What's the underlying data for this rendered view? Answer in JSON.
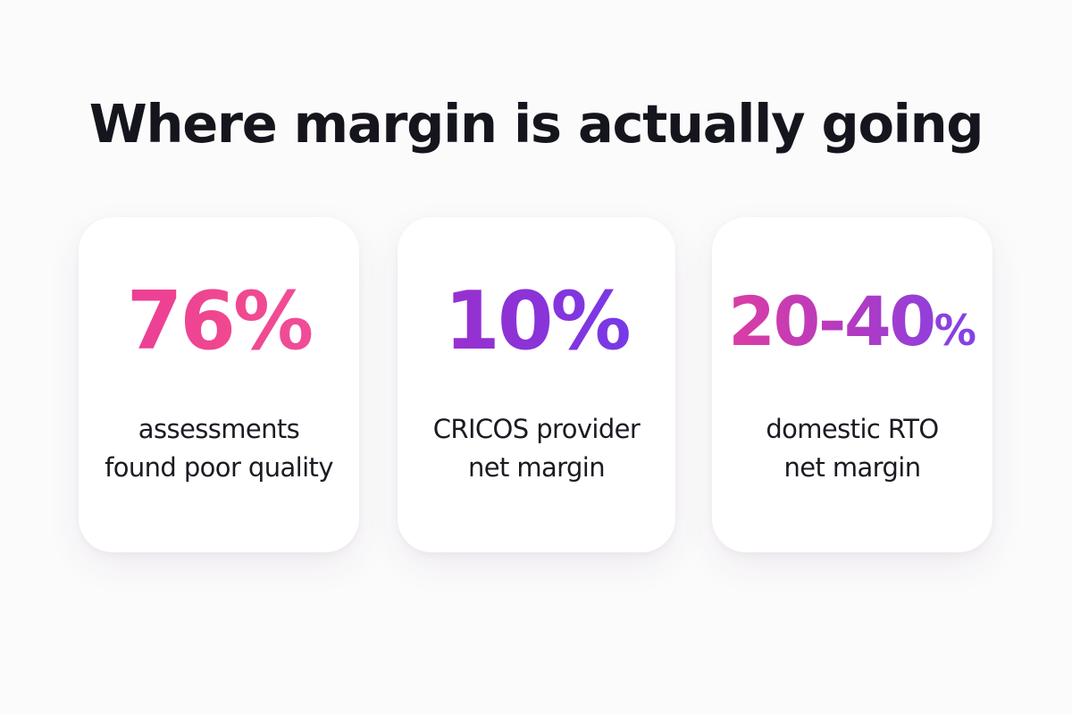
{
  "page": {
    "title": "Where margin is actually going"
  },
  "cards": [
    {
      "stat": "76%",
      "caption_line1": "assessments",
      "caption_line2": "found poor quality"
    },
    {
      "stat": "10%",
      "caption_line1": "CRICOS provider",
      "caption_line2": "net margin"
    },
    {
      "stat_number": "20-40",
      "stat_unit": "%",
      "caption_line1": "domestic RTO",
      "caption_line2": "net margin"
    }
  ],
  "colors": {
    "background": "#fcfbfc",
    "title_text": "#15161d",
    "caption_text": "#1a1b22",
    "card_background": "#ffffff",
    "accent_pink": "#ef4796",
    "accent_magenta": "#a12fc9",
    "accent_violet": "#6d3cf0"
  }
}
